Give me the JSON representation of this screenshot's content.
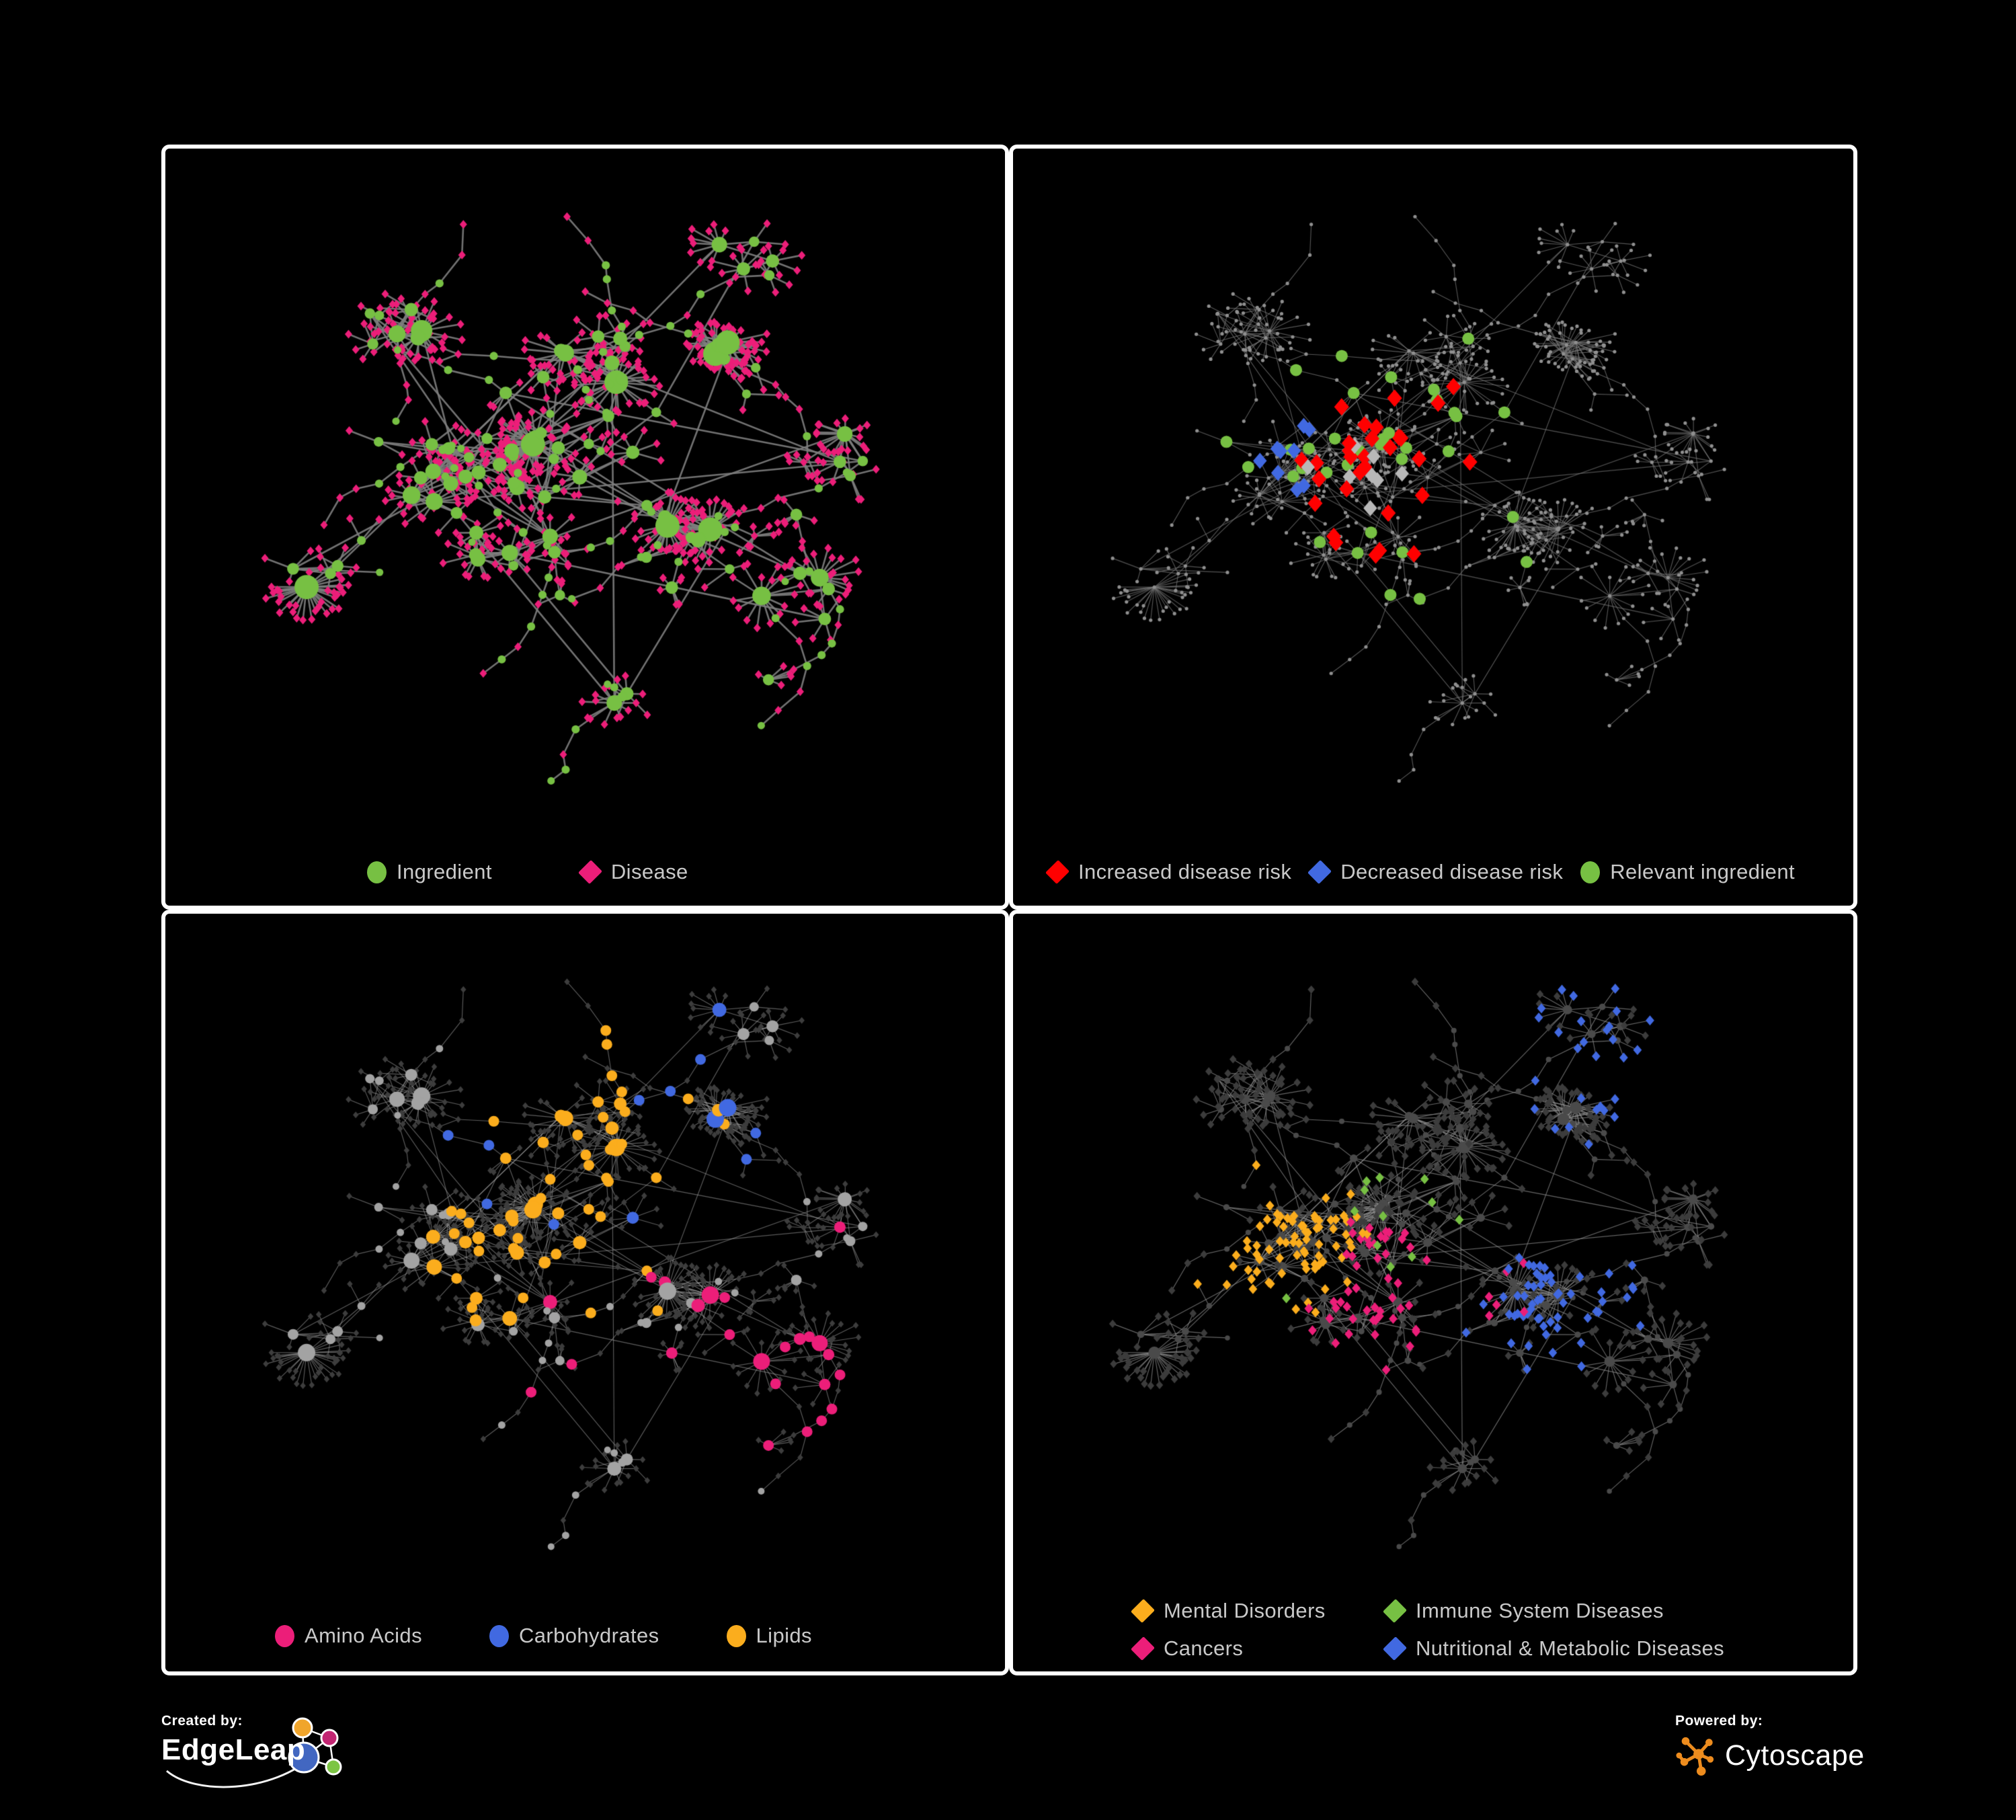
{
  "page": {
    "background": "#000000",
    "frame_border_color": "#FFFFFF"
  },
  "panels": [
    {
      "id": "ingredient-disease",
      "legend": [
        {
          "label": "Ingredient",
          "shape": "circle",
          "color": "#77C043"
        },
        {
          "label": "Disease",
          "shape": "diamond",
          "color": "#EC1E79"
        }
      ]
    },
    {
      "id": "disease-risk",
      "legend": [
        {
          "label": "Increased disease risk",
          "shape": "diamond",
          "color": "#FF0000"
        },
        {
          "label": "Decreased disease risk",
          "shape": "diamond",
          "color": "#4169E1"
        },
        {
          "label": "Relevant ingredient",
          "shape": "circle",
          "color": "#77C043"
        }
      ]
    },
    {
      "id": "ingredient-classes",
      "legend": [
        {
          "label": "Amino Acids",
          "shape": "circle",
          "color": "#EC1E79"
        },
        {
          "label": "Carbohydrates",
          "shape": "circle",
          "color": "#4169E1"
        },
        {
          "label": "Lipids",
          "shape": "circle",
          "color": "#FBAD1D"
        }
      ]
    },
    {
      "id": "disease-classes",
      "legend": [
        {
          "label": "Mental Disorders",
          "shape": "diamond",
          "color": "#FBAD1D"
        },
        {
          "label": "Immune System Diseases",
          "shape": "diamond",
          "color": "#77C043"
        },
        {
          "label": "Cancers",
          "shape": "diamond",
          "color": "#EC1E79"
        },
        {
          "label": "Nutritional & Metabolic Diseases",
          "shape": "diamond",
          "color": "#4169E1"
        }
      ]
    }
  ],
  "footer": {
    "created_by": "Created by:",
    "created_brand": "EdgeLeap",
    "powered_by": "Powered by:",
    "powered_brand": "Cytoscape",
    "cytoscape_orange": "#ED8C1E",
    "edgeleap_palette": {
      "orange": "#F0A52C",
      "magenta": "#C22572",
      "blue": "#4267C1",
      "green": "#7CC544"
    }
  },
  "chart_data": {
    "type": "network",
    "shared_layout": true,
    "description": "Same ingredient-disease network drawn four times with different node colorings. Ingredients are circles, diseases are diamonds.",
    "approx_total_nodes": 800,
    "node_shapes": {
      "ingredient": "circle",
      "disease": "diamond"
    },
    "panels": [
      {
        "id": "ingredient-disease",
        "edge_color": "#7E7E7E",
        "node_styles": {
          "ingredient": {
            "shape": "circle",
            "color": "#77C043"
          },
          "disease": {
            "shape": "diamond",
            "color": "#EC1E79"
          }
        }
      },
      {
        "id": "disease-risk",
        "edge_color": "#787878",
        "base_node_color": "#8F8F8F",
        "highlights": [
          {
            "key": "increased",
            "label": "Increased disease risk",
            "shape": "diamond",
            "color": "#FF0000",
            "approx_count": 30
          },
          {
            "key": "decreased",
            "label": "Decreased disease risk",
            "shape": "diamond",
            "color": "#4169E1",
            "approx_count": 9
          },
          {
            "key": "neutral",
            "label": "Unclassified association",
            "shape": "diamond",
            "color": "#B8B8B8",
            "approx_count": 8
          },
          {
            "key": "relevant",
            "label": "Relevant ingredient",
            "shape": "circle",
            "color": "#77C043",
            "approx_count": 34
          }
        ]
      },
      {
        "id": "ingredient-classes",
        "edge_color": "#A8A8A8",
        "base_ingredient_color": "#A3A3A3",
        "base_disease_color": "#3D3D3D",
        "highlights": [
          {
            "key": "lipids",
            "label": "Lipids",
            "shape": "circle",
            "color": "#FBAD1D",
            "approx_count": 60
          },
          {
            "key": "amino",
            "label": "Amino Acids",
            "shape": "circle",
            "color": "#EC1E79",
            "approx_count": 24
          },
          {
            "key": "carbs",
            "label": "Carbohydrates",
            "shape": "circle",
            "color": "#4169E1",
            "approx_count": 13
          }
        ]
      },
      {
        "id": "disease-classes",
        "edge_color": "#909090",
        "base_ingredient_color": "#4A4A4A",
        "base_disease_color": "#3C3C3C",
        "highlights": [
          {
            "key": "mental",
            "label": "Mental Disorders",
            "shape": "diamond",
            "color": "#FBAD1D",
            "approx_count": 75
          },
          {
            "key": "cancers",
            "label": "Cancers",
            "shape": "diamond",
            "color": "#EC1E79",
            "approx_count": 55
          },
          {
            "key": "nutritional",
            "label": "Nutritional & Metabolic Diseases",
            "shape": "diamond",
            "color": "#4169E1",
            "approx_count": 85
          },
          {
            "key": "immune",
            "label": "Immune System Diseases",
            "shape": "diamond",
            "color": "#77C043",
            "approx_count": 12
          }
        ]
      }
    ]
  }
}
